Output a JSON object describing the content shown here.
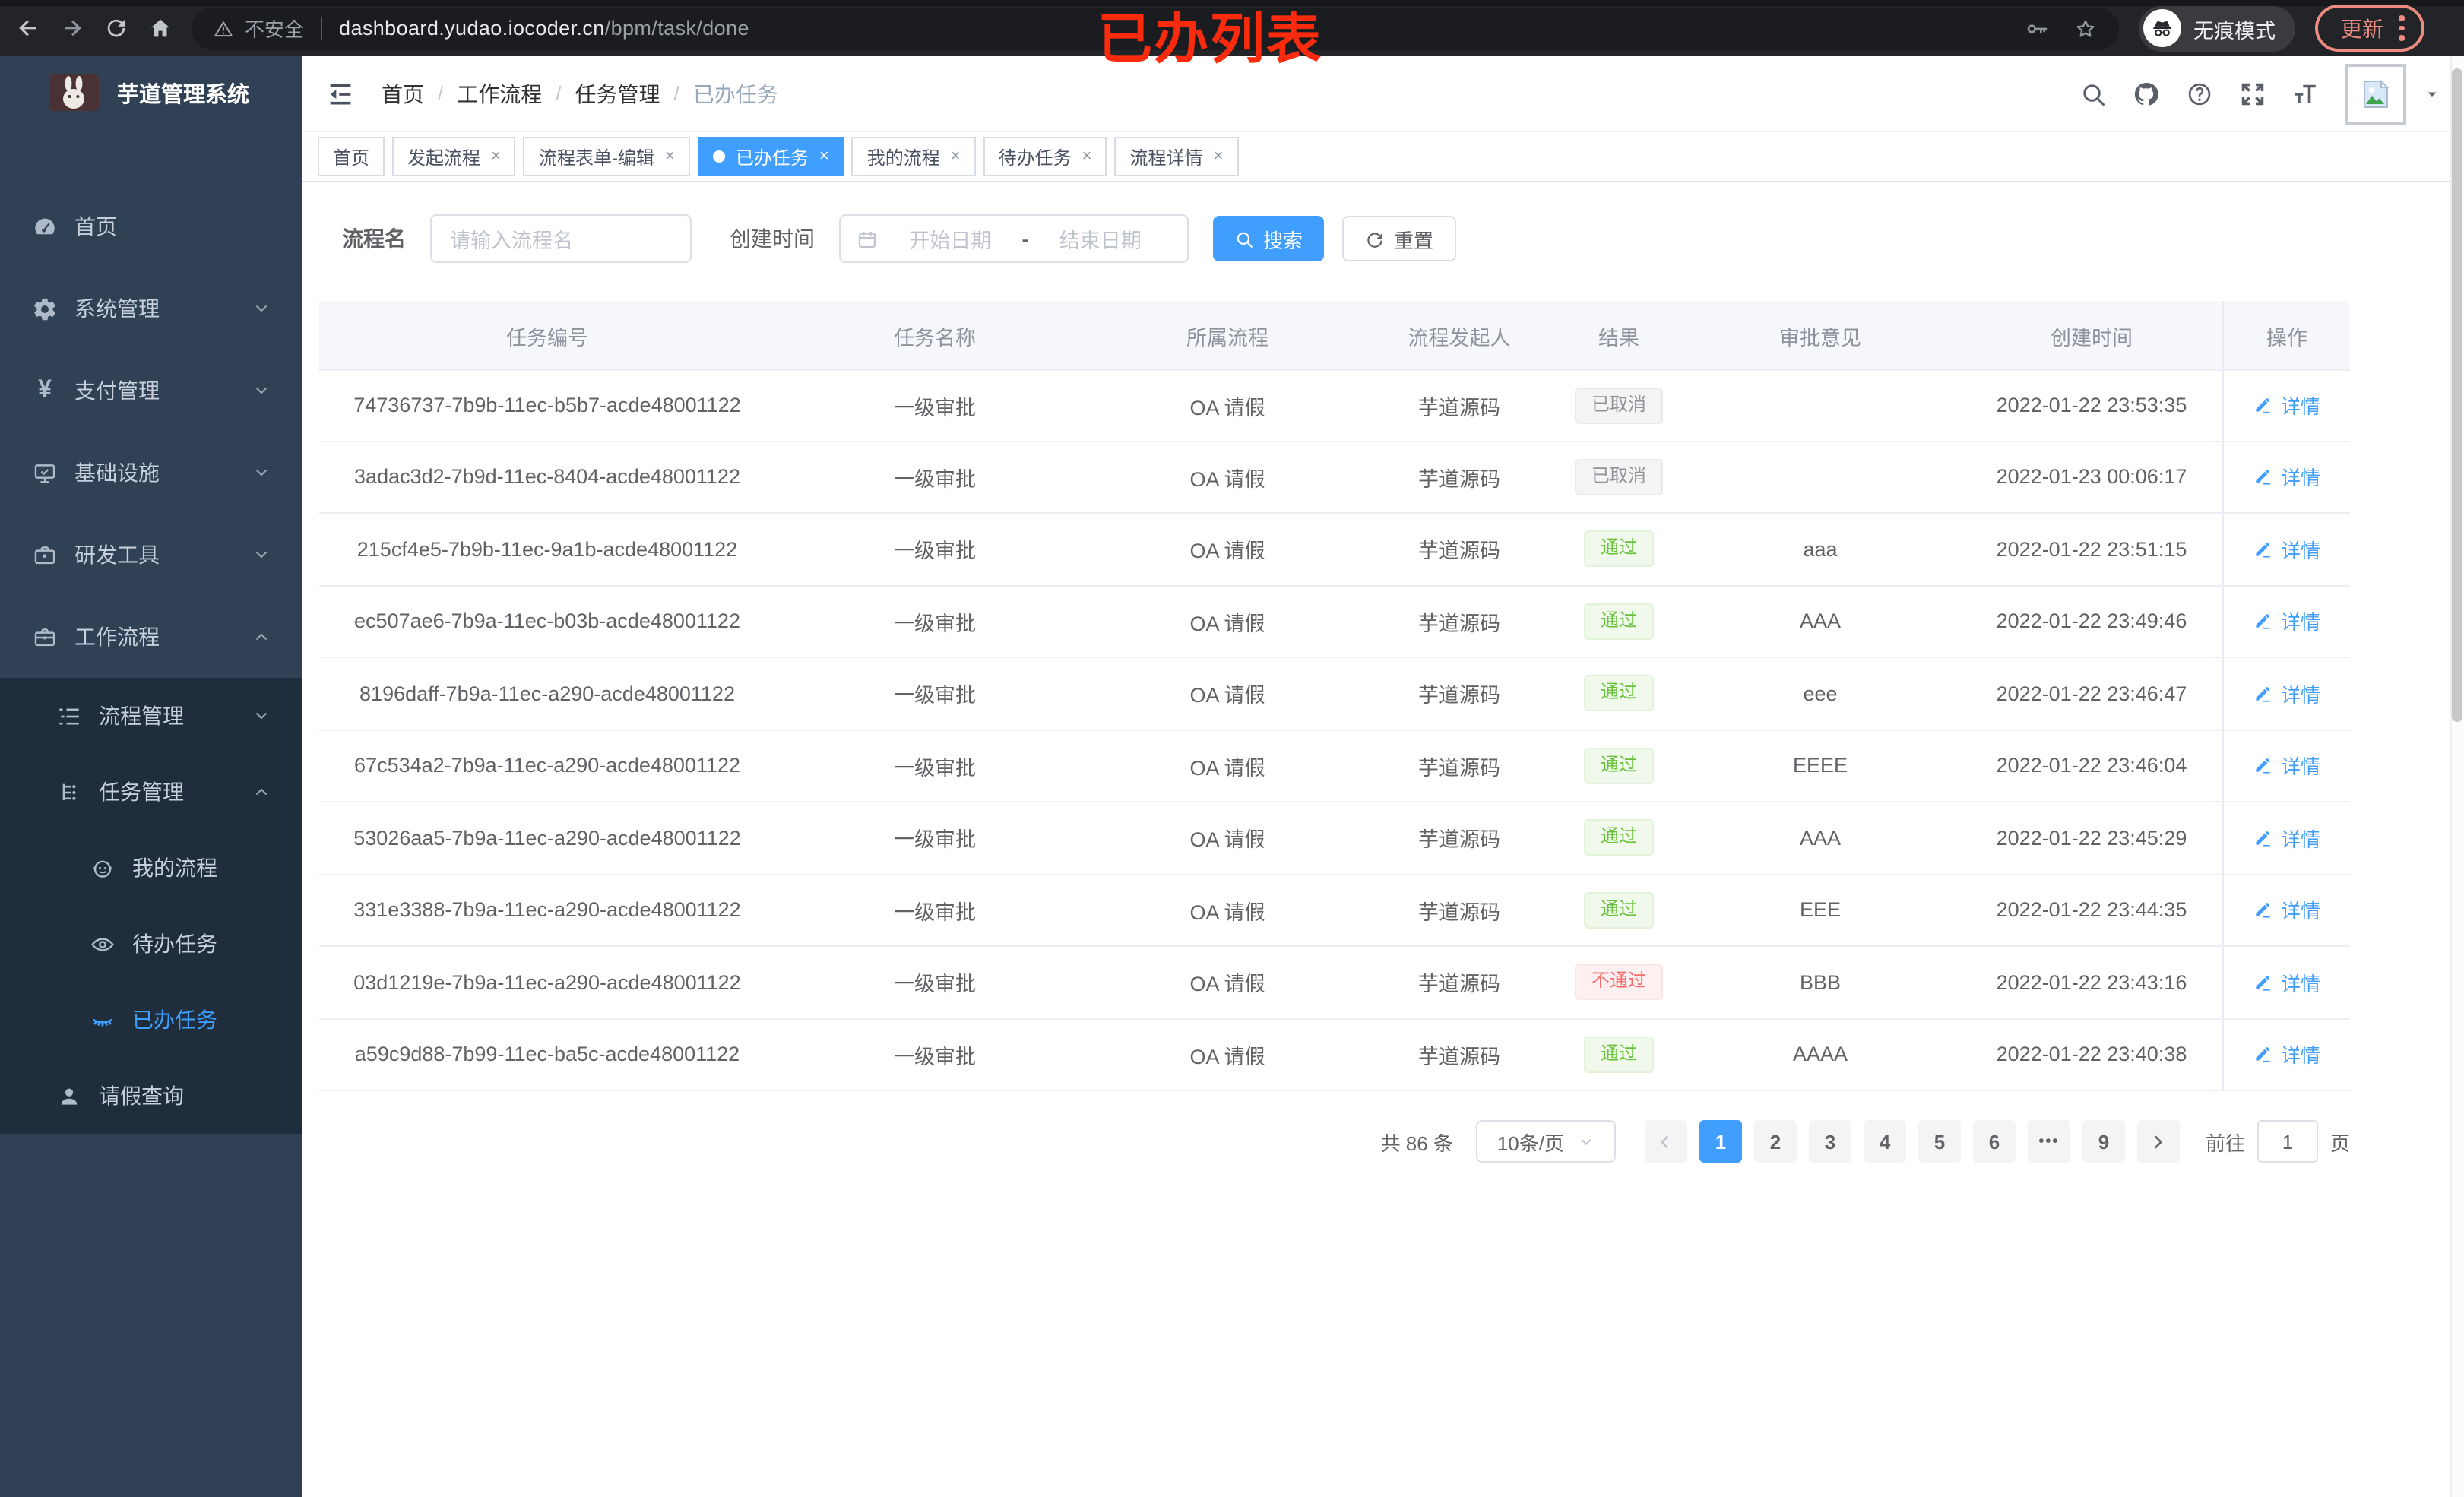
{
  "annotation": {
    "text": "已办列表",
    "color": "#fd2b0e"
  },
  "browser": {
    "security_label": "不安全",
    "url_host": "dashboard.yudao.iocoder.cn",
    "url_path": "/bpm/task/done",
    "incognito_label": "无痕模式",
    "update_label": "更新"
  },
  "appearance": {
    "accent": "#409eff",
    "sidebar_bg": "#304156",
    "submenu_bg": "#1f2d3d",
    "success": "#67c23a",
    "danger": "#f56c6c",
    "info": "#909399",
    "update_pill": "#ee8b80"
  },
  "sidebar": {
    "logo_title": "芋道管理系统",
    "items": [
      {
        "label": "首页",
        "icon": "dashboard-icon"
      },
      {
        "label": "系统管理",
        "icon": "gear-icon",
        "chevron": "down"
      },
      {
        "label": "支付管理",
        "icon": "yen-icon",
        "chevron": "down"
      },
      {
        "label": "基础设施",
        "icon": "monitor-icon",
        "chevron": "down"
      },
      {
        "label": "研发工具",
        "icon": "toolbox-icon",
        "chevron": "down"
      },
      {
        "label": "工作流程",
        "icon": "briefcase-icon",
        "chevron": "up",
        "expanded": true,
        "children": [
          {
            "label": "流程管理",
            "icon": "list-icon",
            "chevron": "down",
            "level": 2
          },
          {
            "label": "任务管理",
            "icon": "tree-icon",
            "chevron": "up",
            "level": 2,
            "children": [
              {
                "label": "我的流程",
                "icon": "face-icon",
                "level": 3
              },
              {
                "label": "待办任务",
                "icon": "eye-icon",
                "level": 3
              },
              {
                "label": "已办任务",
                "icon": "eye-closed-icon",
                "level": 3,
                "active": true
              }
            ]
          },
          {
            "label": "请假查询",
            "icon": "user-icon",
            "level": 2
          }
        ]
      }
    ]
  },
  "header": {
    "breadcrumbs": [
      "首页",
      "工作流程",
      "任务管理",
      "已办任务"
    ]
  },
  "tabs": [
    {
      "label": "首页",
      "closable": false,
      "active": false
    },
    {
      "label": "发起流程",
      "closable": true,
      "active": false
    },
    {
      "label": "流程表单-编辑",
      "closable": true,
      "active": false
    },
    {
      "label": "已办任务",
      "closable": true,
      "active": true
    },
    {
      "label": "我的流程",
      "closable": true,
      "active": false
    },
    {
      "label": "待办任务",
      "closable": true,
      "active": false
    },
    {
      "label": "流程详情",
      "closable": true,
      "active": false
    }
  ],
  "filters": {
    "name_label": "流程名",
    "name_placeholder": "请输入流程名",
    "time_label": "创建时间",
    "start_placeholder": "开始日期",
    "range_separator": "-",
    "end_placeholder": "结束日期",
    "search_label": "搜索",
    "reset_label": "重置"
  },
  "table": {
    "columns": [
      "任务编号",
      "任务名称",
      "所属流程",
      "流程发起人",
      "结果",
      "审批意见",
      "创建时间",
      "操作"
    ],
    "action_label": "详情",
    "rows": [
      {
        "id": "74736737-7b9b-11ec-b5b7-acde48001122",
        "name": "一级审批",
        "process": "OA 请假",
        "starter": "芋道源码",
        "result": "已取消",
        "result_type": "info",
        "comment": "",
        "created": "2022-01-22 23:53:35"
      },
      {
        "id": "3adac3d2-7b9d-11ec-8404-acde48001122",
        "name": "一级审批",
        "process": "OA 请假",
        "starter": "芋道源码",
        "result": "已取消",
        "result_type": "info",
        "comment": "",
        "created": "2022-01-23 00:06:17"
      },
      {
        "id": "215cf4e5-7b9b-11ec-9a1b-acde48001122",
        "name": "一级审批",
        "process": "OA 请假",
        "starter": "芋道源码",
        "result": "通过",
        "result_type": "success",
        "comment": "aaa",
        "created": "2022-01-22 23:51:15"
      },
      {
        "id": "ec507ae6-7b9a-11ec-b03b-acde48001122",
        "name": "一级审批",
        "process": "OA 请假",
        "starter": "芋道源码",
        "result": "通过",
        "result_type": "success",
        "comment": "AAA",
        "created": "2022-01-22 23:49:46"
      },
      {
        "id": "8196daff-7b9a-11ec-a290-acde48001122",
        "name": "一级审批",
        "process": "OA 请假",
        "starter": "芋道源码",
        "result": "通过",
        "result_type": "success",
        "comment": "eee",
        "created": "2022-01-22 23:46:47"
      },
      {
        "id": "67c534a2-7b9a-11ec-a290-acde48001122",
        "name": "一级审批",
        "process": "OA 请假",
        "starter": "芋道源码",
        "result": "通过",
        "result_type": "success",
        "comment": "EEEE",
        "created": "2022-01-22 23:46:04"
      },
      {
        "id": "53026aa5-7b9a-11ec-a290-acde48001122",
        "name": "一级审批",
        "process": "OA 请假",
        "starter": "芋道源码",
        "result": "通过",
        "result_type": "success",
        "comment": "AAA",
        "created": "2022-01-22 23:45:29"
      },
      {
        "id": "331e3388-7b9a-11ec-a290-acde48001122",
        "name": "一级审批",
        "process": "OA 请假",
        "starter": "芋道源码",
        "result": "通过",
        "result_type": "success",
        "comment": "EEE",
        "created": "2022-01-22 23:44:35"
      },
      {
        "id": "03d1219e-7b9a-11ec-a290-acde48001122",
        "name": "一级审批",
        "process": "OA 请假",
        "starter": "芋道源码",
        "result": "不通过",
        "result_type": "danger",
        "comment": "BBB",
        "created": "2022-01-22 23:43:16"
      },
      {
        "id": "a59c9d88-7b99-11ec-ba5c-acde48001122",
        "name": "一级审批",
        "process": "OA 请假",
        "starter": "芋道源码",
        "result": "通过",
        "result_type": "success",
        "comment": "AAAA",
        "created": "2022-01-22 23:40:38"
      }
    ]
  },
  "pagination": {
    "total_label": "共 86 条",
    "page_size_label": "10条/页",
    "pages": [
      "1",
      "2",
      "3",
      "4",
      "5",
      "6",
      "•••",
      "9"
    ],
    "active_page": "1",
    "goto_label": "前往",
    "goto_value": "1",
    "goto_suffix": "页"
  }
}
